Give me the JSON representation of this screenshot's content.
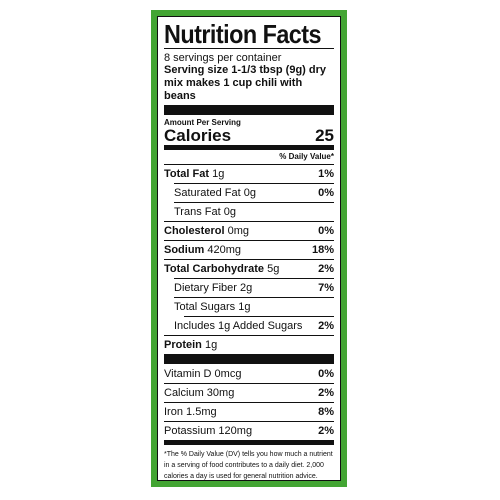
{
  "title": "Nutrition Facts",
  "servings_per_container": "8 servings per container",
  "serving_size": {
    "label": "Serving size",
    "value": "1-1/3 tbsp (9g) dry mix makes 1 cup chili with beans"
  },
  "amount_per_serving": "Amount Per Serving",
  "calories": {
    "label": "Calories",
    "value": "25"
  },
  "daily_value_header": "% Daily Value*",
  "nutrients": [
    {
      "name": "Total Fat",
      "amount": "1g",
      "pct": "1%",
      "bold": true,
      "level": 0
    },
    {
      "name": "Saturated Fat",
      "amount": "0g",
      "pct": "0%",
      "bold": false,
      "level": 1
    },
    {
      "name": "Trans Fat",
      "amount": "0g",
      "pct": "",
      "bold": false,
      "level": 1
    },
    {
      "name": "Cholesterol",
      "amount": "0mg",
      "pct": "0%",
      "bold": true,
      "level": 0
    },
    {
      "name": "Sodium",
      "amount": "420mg",
      "pct": "18%",
      "bold": true,
      "level": 0
    },
    {
      "name": "Total Carbohydrate",
      "amount": "5g",
      "pct": "2%",
      "bold": true,
      "level": 0
    },
    {
      "name": "Dietary Fiber",
      "amount": "2g",
      "pct": "7%",
      "bold": false,
      "level": 1
    },
    {
      "name": "Total Sugars",
      "amount": "1g",
      "pct": "",
      "bold": false,
      "level": 1
    },
    {
      "name": "Includes 1g Added Sugars",
      "amount": "",
      "pct": "2%",
      "bold": false,
      "level": 2
    },
    {
      "name": "Protein",
      "amount": "1g",
      "pct": "",
      "bold": true,
      "level": 0
    }
  ],
  "vitamins": [
    {
      "name": "Vitamin D",
      "amount": "0mcg",
      "pct": "0%"
    },
    {
      "name": "Calcium",
      "amount": "30mg",
      "pct": "2%"
    },
    {
      "name": "Iron",
      "amount": "1.5mg",
      "pct": "8%"
    },
    {
      "name": "Potassium",
      "amount": "120mg",
      "pct": "2%"
    }
  ],
  "footnote": "*The % Daily Value (DV) tells you how much a nutrient in a serving of food contributes to a daily diet. 2,000 calories a day is used for general nutrition advice.",
  "colors": {
    "border_green": "#43a533",
    "text": "#111111"
  }
}
